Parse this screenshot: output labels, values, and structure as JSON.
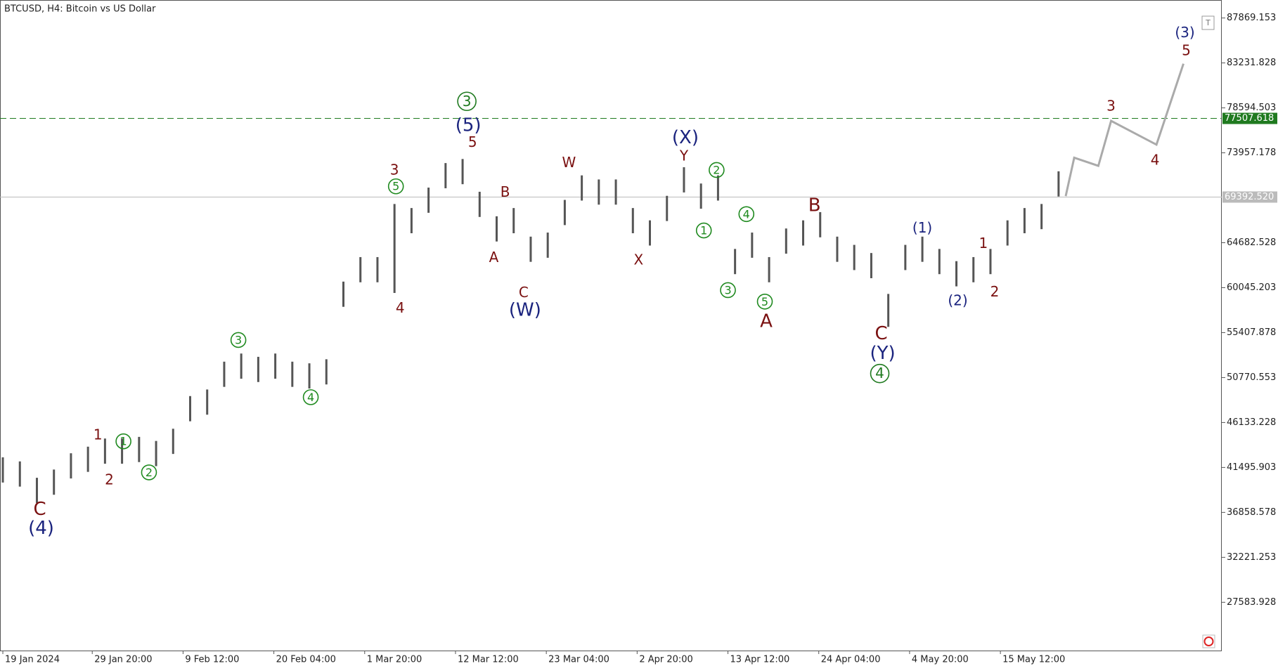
{
  "chart_data": {
    "type": "ohlc",
    "title": "BTCUSD, H4:  Bitcoin vs US Dollar",
    "xlim": [
      -2,
      859
    ],
    "ylim": [
      22606,
      89724
    ],
    "yticks": [
      87869.153,
      83231.828,
      78594.503,
      73957.178,
      64682.528,
      60045.203,
      55407.878,
      50770.553,
      46133.228,
      41495.903,
      36858.578,
      32221.253,
      27583.928
    ],
    "xticks": [
      {
        "value": 0,
        "label": "19 Jan 2024"
      },
      {
        "value": 63,
        "label": "29 Jan 20:00"
      },
      {
        "value": 127,
        "label": "9 Feb 12:00"
      },
      {
        "value": 191,
        "label": "20 Feb 04:00"
      },
      {
        "value": 255,
        "label": "1 Mar 20:00"
      },
      {
        "value": 319,
        "label": "12 Mar 12:00"
      },
      {
        "value": 383,
        "label": "23 Mar 04:00"
      },
      {
        "value": 447,
        "label": "2 Apr 20:00"
      },
      {
        "value": 511,
        "label": "13 Apr 12:00"
      },
      {
        "value": 575,
        "label": "24 Apr 04:00"
      },
      {
        "value": 639,
        "label": "4 May 20:00"
      },
      {
        "value": 703,
        "label": "15 May 12:00"
      }
    ],
    "color": "#555555",
    "x": [
      0,
      12,
      24,
      36,
      48,
      60,
      72,
      84,
      96,
      108,
      120,
      132,
      144,
      156,
      168,
      180,
      192,
      204,
      216,
      228,
      240,
      252,
      264,
      276,
      288,
      300,
      312,
      324,
      336,
      348,
      360,
      372,
      384,
      396,
      408,
      420,
      432,
      444,
      456,
      468,
      480,
      492,
      504,
      516,
      528,
      540,
      552,
      564,
      576,
      588,
      600,
      612,
      624,
      636,
      648,
      660,
      672,
      684,
      696,
      708,
      720,
      732,
      744
    ],
    "high": [
      42540,
      42120,
      40430,
      41280,
      42960,
      43640,
      44480,
      44480,
      44650,
      44230,
      45490,
      48860,
      49540,
      52410,
      53250,
      52910,
      53250,
      52410,
      52240,
      52660,
      60670,
      63200,
      63200,
      68680,
      68260,
      70370,
      72900,
      73320,
      69940,
      67410,
      68260,
      65310,
      65730,
      69100,
      71630,
      71210,
      71210,
      68260,
      66990,
      69520,
      72470,
      70790,
      71630,
      64040,
      65730,
      63200,
      66150,
      66990,
      67840,
      65310,
      64460,
      63620,
      59400,
      64460,
      65310,
      64040,
      62780,
      63200,
      64040,
      66990,
      68260,
      68680,
      72050
    ],
    "low": [
      39940,
      39520,
      37830,
      38680,
      40360,
      41040,
      41880,
      41880,
      42050,
      41630,
      42890,
      46260,
      46940,
      49810,
      50650,
      50310,
      50650,
      49810,
      49640,
      50060,
      58070,
      60600,
      60600,
      59500,
      65660,
      67770,
      70300,
      70720,
      67340,
      64810,
      65660,
      62710,
      63130,
      66500,
      69030,
      68610,
      68610,
      65660,
      64390,
      66920,
      69870,
      68190,
      69030,
      61440,
      63130,
      60600,
      63550,
      64390,
      65240,
      62710,
      61860,
      61020,
      56000,
      61860,
      62710,
      61440,
      60180,
      60600,
      61440,
      64390,
      65660,
      66080,
      69450
    ],
    "projection": {
      "color": "#aaaaaa",
      "x": [
        749,
        755,
        772,
        781,
        813,
        832
      ],
      "values": [
        69490,
        73450,
        72610,
        77250,
        74800,
        83150
      ]
    },
    "levels": [
      {
        "value": 77507.618,
        "color": "#1f7a1f",
        "dashed": true
      },
      {
        "value": 69392.52,
        "label": "69392.520",
        "color": "#bbbbbb",
        "dashed": false
      }
    ],
    "annotations": [
      {
        "text": "C",
        "color": "#7a1010",
        "x": 26,
        "y": 37193,
        "large": true
      },
      {
        "text": "(4)",
        "color": "#1a237e",
        "x": 27,
        "y": 35253,
        "large": true
      },
      {
        "text": "1",
        "color": "#7a1010",
        "x": 67,
        "y": 44866
      },
      {
        "text": "2",
        "color": "#7a1010",
        "x": 75,
        "y": 40228
      },
      {
        "text": "1",
        "color": "#1f8a1f",
        "x": 85,
        "y": 44191,
        "circled": true
      },
      {
        "text": "2",
        "color": "#1f8a1f",
        "x": 103,
        "y": 40987,
        "circled": true
      },
      {
        "text": "3",
        "color": "#1f8a1f",
        "x": 166,
        "y": 54647,
        "circled": true
      },
      {
        "text": "4",
        "color": "#1f8a1f",
        "x": 217,
        "y": 48745,
        "circled": true
      },
      {
        "text": "3",
        "color": "#7a1010",
        "x": 276,
        "y": 72185
      },
      {
        "text": "5",
        "color": "#1f8a1f",
        "x": 277,
        "y": 70499,
        "circled": true
      },
      {
        "text": "4",
        "color": "#7a1010",
        "x": 280,
        "y": 57935
      },
      {
        "text": "3",
        "color": "#1f7a1f",
        "x": 327,
        "y": 79268,
        "circled": true,
        "large": true
      },
      {
        "text": "(5)",
        "color": "#1a237e",
        "x": 328,
        "y": 76823,
        "large": true
      },
      {
        "text": "5",
        "color": "#7a1010",
        "x": 331,
        "y": 75052
      },
      {
        "text": "B",
        "color": "#7a1010",
        "x": 354,
        "y": 69909
      },
      {
        "text": "A",
        "color": "#7a1010",
        "x": 346,
        "y": 63163
      },
      {
        "text": "C",
        "color": "#7a1010",
        "x": 367,
        "y": 59537
      },
      {
        "text": "(W)",
        "color": "#1a237e",
        "x": 368,
        "y": 57767,
        "large": true
      },
      {
        "text": "W",
        "color": "#7a1010",
        "x": 399,
        "y": 72944
      },
      {
        "text": "X",
        "color": "#7a1010",
        "x": 448,
        "y": 62910
      },
      {
        "text": "(X)",
        "color": "#1a237e",
        "x": 481,
        "y": 75558,
        "large": true
      },
      {
        "text": "Y",
        "color": "#7a1010",
        "x": 480,
        "y": 73619
      },
      {
        "text": "2",
        "color": "#1f8a1f",
        "x": 503,
        "y": 72185,
        "circled": true
      },
      {
        "text": "1",
        "color": "#1f8a1f",
        "x": 494,
        "y": 65946,
        "circled": true
      },
      {
        "text": "4",
        "color": "#1f8a1f",
        "x": 524,
        "y": 67632,
        "circled": true
      },
      {
        "text": "3",
        "color": "#1f8a1f",
        "x": 511,
        "y": 59790,
        "circled": true
      },
      {
        "text": "5",
        "color": "#1f8a1f",
        "x": 537,
        "y": 58610,
        "circled": true
      },
      {
        "text": "A",
        "color": "#7a1010",
        "x": 538,
        "y": 56586,
        "large": true
      },
      {
        "text": "B",
        "color": "#7a1010",
        "x": 572,
        "y": 68560,
        "large": true
      },
      {
        "text": "C",
        "color": "#7a1010",
        "x": 619,
        "y": 55321,
        "large": true
      },
      {
        "text": "(Y)",
        "color": "#1a237e",
        "x": 620,
        "y": 53298,
        "large": true
      },
      {
        "text": "4",
        "color": "#1f7a1f",
        "x": 618,
        "y": 51190,
        "circled": true,
        "large": true
      },
      {
        "text": "(1)",
        "color": "#1a237e",
        "x": 648,
        "y": 66199
      },
      {
        "text": "(2)",
        "color": "#1a237e",
        "x": 673,
        "y": 58694
      },
      {
        "text": "1",
        "color": "#7a1010",
        "x": 691,
        "y": 64597
      },
      {
        "text": "2",
        "color": "#7a1010",
        "x": 699,
        "y": 59622
      },
      {
        "text": "3",
        "color": "#7a1010",
        "x": 781,
        "y": 78762
      },
      {
        "text": "4",
        "color": "#7a1010",
        "x": 812,
        "y": 73197
      },
      {
        "text": "5",
        "color": "#7a1010",
        "x": 834,
        "y": 84496
      },
      {
        "text": "(3)",
        "color": "#1a237e",
        "x": 833,
        "y": 86351
      }
    ]
  }
}
